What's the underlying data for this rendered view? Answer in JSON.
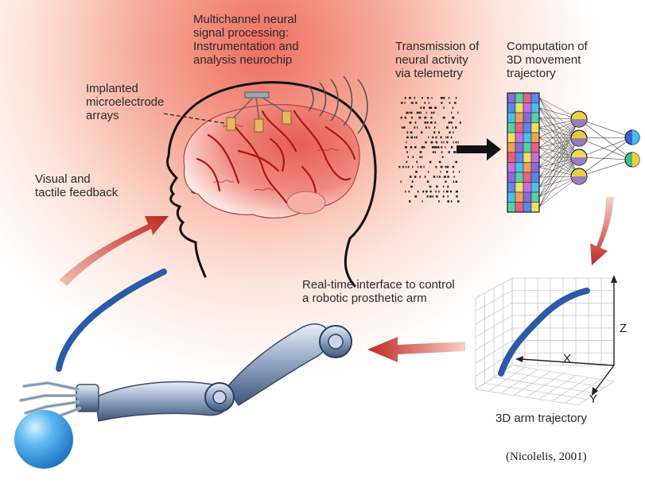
{
  "labels": {
    "neurochip": "Multichannel neural\nsignal processing:\nInstrumentation and\nanalysis neurochip",
    "electrodes": "Implanted\nmicroelectrode\narrays",
    "feedback": "Visual and\ntactile feedback",
    "telemetry": "Transmission of\nneural activity\nvia telemetry",
    "computation": "Computation of\n3D movement\ntrajectory",
    "interface": "Real-time interface to control\na robotic prosthetic arm",
    "trajectory": "3D arm trajectory",
    "citation": "(Nicolelis, 2001)"
  },
  "axes": {
    "z": "Z",
    "x": "X",
    "y": "Y"
  },
  "colors": {
    "background_glow": "#f08070",
    "brain": "#e06060",
    "brain_vessels": "#b01818",
    "trajectory": "#2a5aa8",
    "arrow": "#c03028",
    "sphere": "#3aa0e8",
    "arm_metal": "#7f95b5"
  },
  "icons": [
    "head-outline",
    "brain",
    "microelectrode-arrays",
    "telemetry-waves",
    "spike-raster",
    "input-grid",
    "neural-network",
    "robotic-arm",
    "ball",
    "3d-grid"
  ]
}
